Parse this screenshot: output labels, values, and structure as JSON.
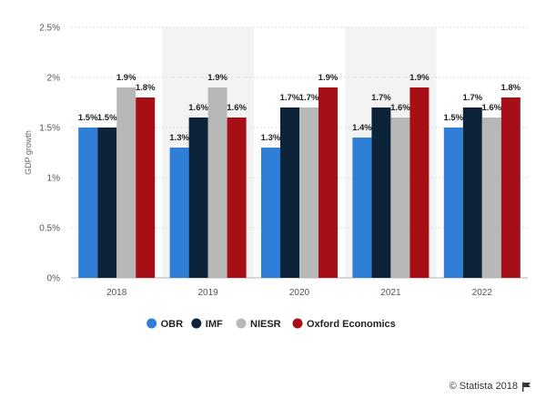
{
  "colors": {
    "OBR": "#2f7ed8",
    "IMF": "#0d233a",
    "NIESR": "#b8b8b8",
    "Oxford Economics": "#a50f15",
    "band": "#f3f3f3",
    "grid": "#dcdcdc"
  },
  "chart_data": {
    "type": "bar",
    "categories": [
      "2018",
      "2019",
      "2020",
      "2021",
      "2022"
    ],
    "series": [
      {
        "name": "OBR",
        "values": [
          1.5,
          1.3,
          1.3,
          1.4,
          1.5
        ]
      },
      {
        "name": "IMF",
        "values": [
          1.5,
          1.6,
          1.7,
          1.7,
          1.7
        ]
      },
      {
        "name": "NIESR",
        "values": [
          1.9,
          1.9,
          1.7,
          1.6,
          1.6
        ]
      },
      {
        "name": "Oxford Economics",
        "values": [
          1.8,
          1.6,
          1.9,
          1.9,
          1.8
        ]
      }
    ],
    "data_labels": [
      [
        "1.5%",
        "1.5%",
        "1.9%",
        "1.8%"
      ],
      [
        "1.3%",
        "1.6%",
        "1.9%",
        "1.6%"
      ],
      [
        "1.3%",
        "1.7%",
        "1.7%",
        "1.9%"
      ],
      [
        "1.4%",
        "1.7%",
        "1.6%",
        "1.9%"
      ],
      [
        "1.5%",
        "1.7%",
        "1.6%",
        "1.8%"
      ]
    ],
    "ylabel": "GDP growth",
    "ylim": [
      0,
      2.5
    ],
    "yticks": [
      0,
      0.5,
      1,
      1.5,
      2,
      2.5
    ],
    "ytick_labels": [
      "0%",
      "0.5%",
      "1%",
      "1.5%",
      "2%",
      "2.5%"
    ],
    "grid": true,
    "legend_position": "bottom-center"
  },
  "credit": "© Statista 2018"
}
